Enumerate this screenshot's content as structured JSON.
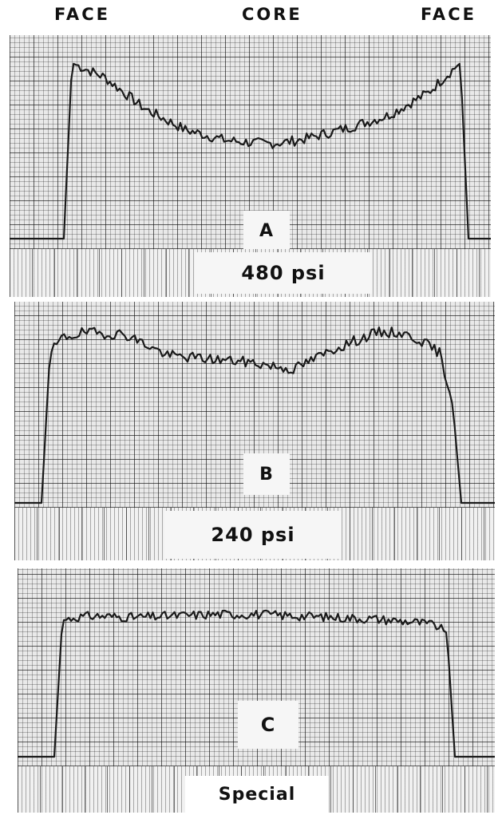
{
  "header": {
    "left": "FACE",
    "center": "CORE",
    "right": "FACE"
  },
  "panels": {
    "a": {
      "letter": "A",
      "pressure": "480 psi"
    },
    "b": {
      "letter": "B",
      "pressure": "240 psi"
    },
    "c": {
      "letter": "C",
      "pressure": "Special"
    }
  },
  "chart_data": [
    {
      "type": "line",
      "title": "",
      "xlabel": "",
      "ylabel": "",
      "x_labels": [
        "FACE",
        "CORE",
        "FACE"
      ],
      "grid": true,
      "series": [
        {
          "label": "A",
          "annotation": "480 psi",
          "x": [
            0,
            2,
            5,
            10,
            20,
            30,
            40,
            45,
            50,
            55,
            60,
            70,
            80,
            90,
            95,
            98,
            100
          ],
          "y": [
            0,
            1.0,
            0.97,
            0.92,
            0.74,
            0.62,
            0.56,
            0.55,
            0.54,
            0.55,
            0.57,
            0.63,
            0.7,
            0.83,
            0.94,
            1.0,
            0
          ]
        }
      ]
    },
    {
      "type": "line",
      "title": "",
      "xlabel": "",
      "ylabel": "",
      "x_labels": [
        "FACE",
        "CORE",
        "FACE"
      ],
      "grid": true,
      "series": [
        {
          "label": "B",
          "annotation": "240 psi",
          "x": [
            0,
            2,
            5,
            10,
            20,
            30,
            40,
            50,
            60,
            70,
            80,
            85,
            90,
            95,
            98,
            100
          ],
          "y": [
            0,
            0.85,
            0.94,
            0.97,
            0.96,
            0.84,
            0.82,
            0.8,
            0.76,
            0.88,
            0.97,
            0.97,
            0.93,
            0.85,
            0.55,
            0
          ]
        }
      ]
    },
    {
      "type": "line",
      "title": "",
      "xlabel": "",
      "ylabel": "",
      "x_labels": [
        "FACE",
        "CORE",
        "FACE"
      ],
      "grid": true,
      "series": [
        {
          "label": "C",
          "annotation": "Special",
          "x": [
            0,
            2,
            5,
            10,
            20,
            30,
            40,
            50,
            60,
            70,
            80,
            90,
            95,
            98,
            100
          ],
          "y": [
            0,
            0.88,
            0.9,
            0.91,
            0.9,
            0.91,
            0.92,
            0.92,
            0.91,
            0.9,
            0.89,
            0.87,
            0.85,
            0.8,
            0
          ]
        }
      ]
    }
  ]
}
